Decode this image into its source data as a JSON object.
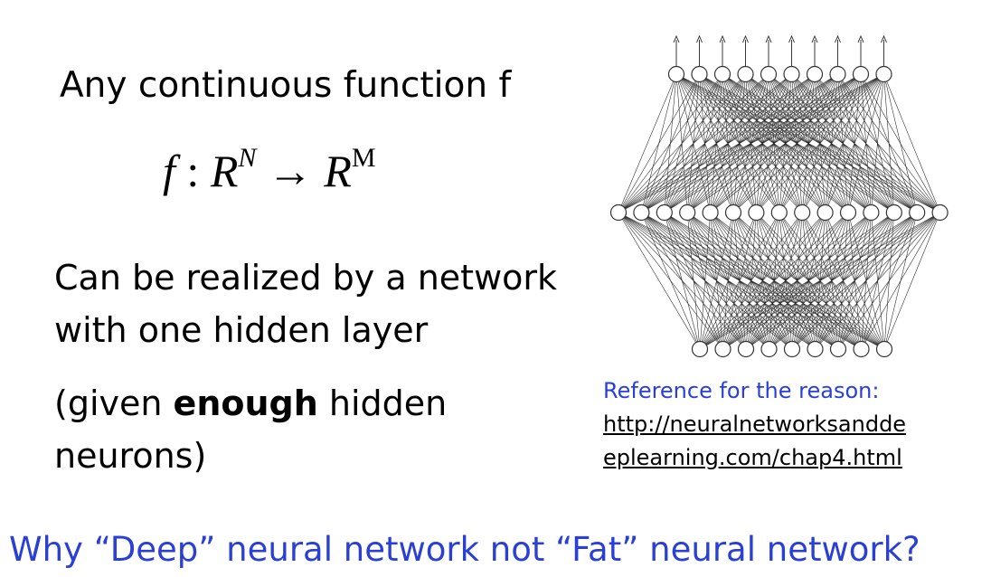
{
  "slide": {
    "line1": "Any continuous function f",
    "formula": {
      "f": "f",
      "colon": ":",
      "domain_base": "R",
      "domain_exp": "N",
      "arrow": "→",
      "codomain_base": "R",
      "codomain_exp": "M"
    },
    "line2a": "Can be realized by a network",
    "line2b": "with one hidden layer",
    "line3a_pre": "(given ",
    "line3a_bold": "enough",
    "line3a_post": " hidden",
    "line3b": "neurons)",
    "reference": {
      "label": "Reference for the reason:",
      "link_line1": "http://neuralnetworksandde",
      "link_line2": "eplearning.com/chap4.html"
    },
    "question": "Why “Deep” neural network not “Fat” neural network?"
  },
  "network": {
    "input_neurons": 9,
    "hidden_neurons": 15,
    "output_neurons": 10,
    "output_arrows": 10,
    "colors": {
      "edge": "#222222",
      "node_fill": "#ffffff",
      "node_stroke": "#333333"
    }
  }
}
